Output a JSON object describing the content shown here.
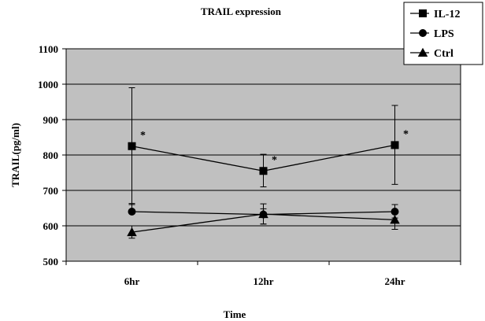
{
  "chart_data": {
    "type": "line",
    "title": "TRAIL expression",
    "xlabel": "Time",
    "ylabel": "TRAIL(pg/ml)",
    "categories": [
      "6hr",
      "12hr",
      "24hr"
    ],
    "ylim": [
      500,
      1100
    ],
    "yticks": [
      "500",
      "600",
      "700",
      "800",
      "900",
      "1000",
      "1100"
    ],
    "grid": true,
    "legend_position": "top-right",
    "plot_background": "#c0c0c0",
    "series": [
      {
        "name": "IL-12",
        "marker": "square",
        "values": [
          825,
          755,
          828
        ],
        "error_low": [
          660,
          710,
          717
        ],
        "error_high": [
          990,
          802,
          940
        ]
      },
      {
        "name": "LPS",
        "marker": "circle",
        "values": [
          640,
          632,
          640
        ],
        "error_low": [
          640,
          605,
          622
        ],
        "error_high": [
          663,
          662,
          660
        ]
      },
      {
        "name": "Ctrl",
        "marker": "triangle",
        "values": [
          582,
          633,
          617
        ],
        "error_low": [
          565,
          605,
          590
        ],
        "error_high": [
          600,
          648,
          640
        ]
      }
    ],
    "annotations": [
      "*",
      "*",
      "*"
    ]
  }
}
